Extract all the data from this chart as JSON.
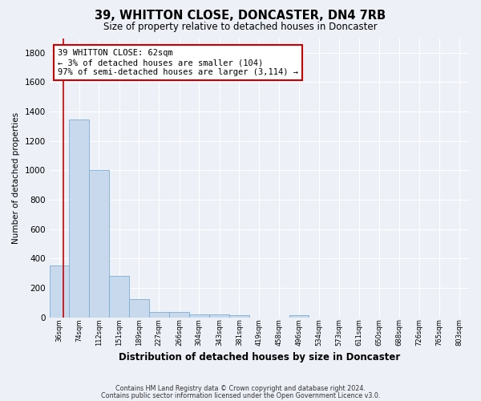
{
  "title1": "39, WHITTON CLOSE, DONCASTER, DN4 7RB",
  "title2": "Size of property relative to detached houses in Doncaster",
  "xlabel": "Distribution of detached houses by size in Doncaster",
  "ylabel": "Number of detached properties",
  "footnote1": "Contains HM Land Registry data © Crown copyright and database right 2024.",
  "footnote2": "Contains public sector information licensed under the Open Government Licence v3.0.",
  "categories": [
    "36sqm",
    "74sqm",
    "112sqm",
    "151sqm",
    "189sqm",
    "227sqm",
    "266sqm",
    "304sqm",
    "343sqm",
    "381sqm",
    "419sqm",
    "458sqm",
    "496sqm",
    "534sqm",
    "573sqm",
    "611sqm",
    "650sqm",
    "688sqm",
    "726sqm",
    "765sqm",
    "803sqm"
  ],
  "values": [
    355,
    1345,
    1005,
    285,
    125,
    38,
    35,
    22,
    18,
    15,
    0,
    0,
    15,
    0,
    0,
    0,
    0,
    0,
    0,
    0,
    0
  ],
  "bar_color": "#c8d9ee",
  "bar_edge_color": "#7bafd4",
  "ylim": [
    0,
    1900
  ],
  "yticks": [
    0,
    200,
    400,
    600,
    800,
    1000,
    1200,
    1400,
    1600,
    1800
  ],
  "property_size": 62,
  "property_label": "39 WHITTON CLOSE: 62sqm",
  "annotation_line1": "← 3% of detached houses are smaller (104)",
  "annotation_line2": "97% of semi-detached houses are larger (3,114) →",
  "vline_color": "#cc0000",
  "annotation_box_color": "#cc0000",
  "bg_color": "#edf1f7",
  "grid_color": "#ffffff",
  "bin_width": 38
}
